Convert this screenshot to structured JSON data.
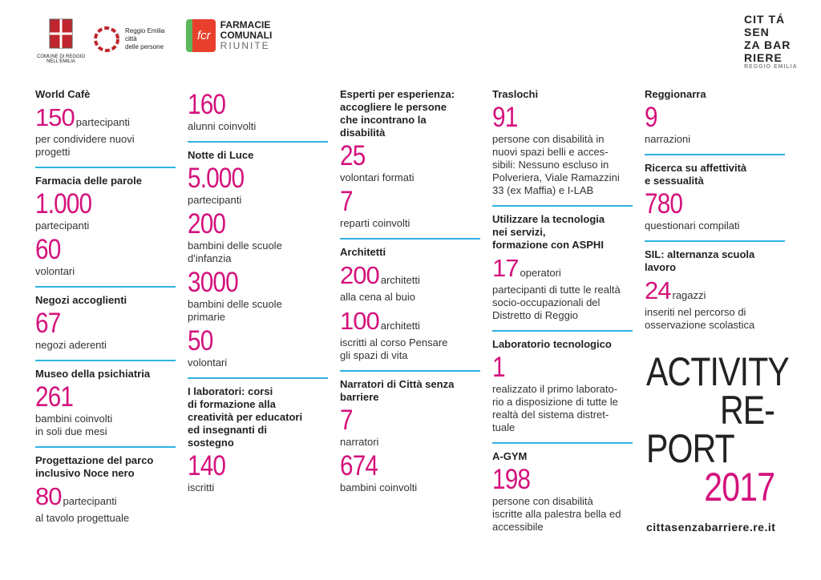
{
  "header": {
    "comune": "COMUNE DI REGGIO NELL'EMILIA",
    "reggio": [
      "Reggio Emilia",
      "città",
      "delle persone"
    ],
    "fcr": "fcr",
    "farmacie": [
      "FARMACIE",
      "COMUNALI",
      "RIUNITE"
    ],
    "citta": [
      "CIT TÁ",
      "SEN",
      "ZA BAR",
      "RIERE",
      "REGGIO EMILIA"
    ]
  },
  "columns": [
    [
      {
        "title": [
          "World Cafè"
        ],
        "items": [
          {
            "number": "150",
            "lines": [
              "partecipanti",
              "per condividere nuovi",
              "progetti"
            ]
          }
        ]
      },
      {
        "title": [
          "Farmacia delle parole"
        ],
        "items": [
          {
            "number": "1.000",
            "lines": [
              "partecipanti"
            ]
          },
          {
            "number": "60",
            "lines": [
              "volontari"
            ]
          }
        ]
      },
      {
        "title": [
          "Negozi accoglienti"
        ],
        "items": [
          {
            "number": "67",
            "lines": [
              "negozi aderenti"
            ]
          }
        ]
      },
      {
        "title": [
          "Museo della psichiatria"
        ],
        "items": [
          {
            "number": "261",
            "lines": [
              "bambini coinvolti",
              "in soli due mesi"
            ]
          }
        ]
      },
      {
        "title": [
          "Progettazione del parco",
          "inclusivo Noce nero"
        ],
        "items": [
          {
            "number": "80",
            "lines": [
              "partecipanti",
              "al tavolo progettuale"
            ]
          }
        ]
      }
    ],
    [
      {
        "items": [
          {
            "number": "160",
            "lines": [
              "alunni coinvolti"
            ]
          }
        ]
      },
      {
        "title": [
          "Notte di Luce"
        ],
        "items": [
          {
            "number": "5.000",
            "lines": [
              "partecipanti"
            ]
          },
          {
            "number": "200",
            "lines": [
              "bambini delle scuole",
              "d'infanzia"
            ]
          },
          {
            "number": "3000",
            "lines": [
              "bambini delle scuole",
              "primarie"
            ]
          },
          {
            "number": "50",
            "lines": [
              "volontari"
            ]
          }
        ]
      },
      {
        "title": [
          "I laboratori: corsi",
          "di formazione alla",
          "creatività per educatori",
          "ed insegnanti di",
          "sostegno"
        ],
        "items": [
          {
            "number": "140",
            "lines": [
              "iscritti"
            ]
          }
        ]
      }
    ],
    [
      {
        "title": [
          "Esperti per esperienza:",
          "accogliere le persone",
          "che incontrano la",
          "disabilità"
        ],
        "items": [
          {
            "number": "25",
            "lines": [
              "volontari formati"
            ]
          },
          {
            "number": "7",
            "lines": [
              "reparti coinvolti"
            ]
          }
        ]
      },
      {
        "title": [
          "Architetti"
        ],
        "items": [
          {
            "number": "200",
            "lines": [
              "architetti",
              "alla cena al buio"
            ]
          },
          {
            "number": "100",
            "lines": [
              "architetti",
              "iscritti al corso Pensare",
              "gli spazi di vita"
            ]
          }
        ]
      },
      {
        "title": [
          "Narratori di Città senza",
          "barriere"
        ],
        "items": [
          {
            "number": "7",
            "lines": [
              "narratori"
            ]
          },
          {
            "number": "674",
            "lines": [
              "bambini coinvolti"
            ]
          }
        ]
      }
    ],
    [
      {
        "title": [
          "Traslochi"
        ],
        "items": [
          {
            "number": "91",
            "lines": [
              "persone con disabilità in",
              "nuovi spazi belli e acces-",
              "sibili: Nessuno escluso in",
              "Polveriera, Viale Ramazzini",
              "33 (ex Maffia) e I-LAB"
            ]
          }
        ]
      },
      {
        "title": [
          "Utilizzare la tecnologia",
          "nei servizi,",
          "formazione con ASPHI"
        ],
        "items": [
          {
            "number": "17",
            "lines": [
              "operatori",
              "partecipanti di tutte le realtà",
              "socio-occupazionali del",
              "Distretto di Reggio"
            ]
          }
        ]
      },
      {
        "title": [
          "Laboratorio tecnologico"
        ],
        "items": [
          {
            "number": "1",
            "lines": [
              "realizzato il primo laborato-",
              "rio a disposizione di tutte le",
              "realtà del sistema distret-",
              "tuale"
            ]
          }
        ]
      },
      {
        "title": [
          "A-GYM"
        ],
        "items": [
          {
            "number": "198",
            "lines": [
              "persone con disabilità",
              "iscritte alla palestra bella ed",
              "accessibile"
            ]
          }
        ]
      }
    ],
    [
      {
        "title": [
          "Reggionarra"
        ],
        "items": [
          {
            "number": "9",
            "lines": [
              "narrazioni"
            ]
          }
        ]
      },
      {
        "title": [
          "Ricerca su affettività",
          "e sessualità"
        ],
        "items": [
          {
            "number": "780",
            "lines": [
              "questionari compilati"
            ]
          }
        ]
      },
      {
        "title": [
          "SIL: alternanza scuola",
          "lavoro"
        ],
        "items": [
          {
            "number": "24",
            "lines": [
              "ragazzi",
              "inseriti nel percorso di",
              "osservazione scolastica"
            ]
          }
        ]
      }
    ]
  ],
  "report": {
    "lines": [
      "ACTIVITY",
      "RE-",
      "PORT",
      "2017"
    ],
    "url": "cittasenzabarriere.re.it"
  }
}
